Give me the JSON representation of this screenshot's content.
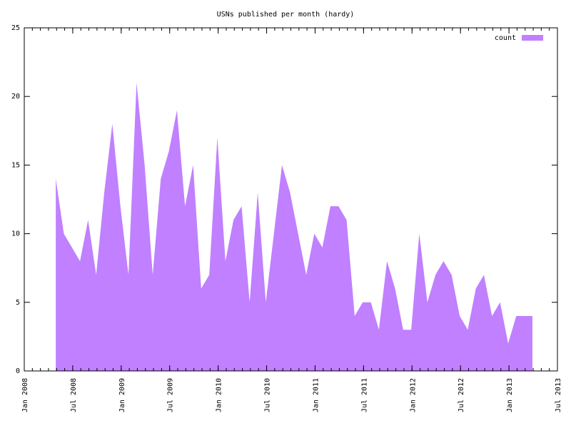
{
  "chart_data": {
    "type": "area",
    "title": "USNs published per month (hardy)",
    "x": [
      "2008-04",
      "2008-05",
      "2008-06",
      "2008-07",
      "2008-08",
      "2008-09",
      "2008-10",
      "2008-11",
      "2008-12",
      "2009-01",
      "2009-02",
      "2009-03",
      "2009-04",
      "2009-05",
      "2009-06",
      "2009-07",
      "2009-08",
      "2009-09",
      "2009-10",
      "2009-11",
      "2009-12",
      "2010-01",
      "2010-02",
      "2010-03",
      "2010-04",
      "2010-05",
      "2010-06",
      "2010-07",
      "2010-08",
      "2010-09",
      "2010-10",
      "2010-11",
      "2010-12",
      "2011-01",
      "2011-02",
      "2011-03",
      "2011-04",
      "2011-05",
      "2011-06",
      "2011-07",
      "2011-08",
      "2011-09",
      "2011-10",
      "2011-11",
      "2011-12",
      "2012-01",
      "2012-02",
      "2012-03",
      "2012-04",
      "2012-05",
      "2012-06",
      "2012-07",
      "2012-08",
      "2012-09",
      "2012-10",
      "2012-11",
      "2012-12",
      "2013-01",
      "2013-02",
      "2013-03"
    ],
    "series": [
      {
        "name": "count",
        "color": "#c080ff",
        "values": [
          14,
          10,
          9,
          8,
          11,
          7,
          13,
          18,
          12,
          7,
          21,
          15,
          7,
          14,
          16,
          19,
          12,
          15,
          6,
          7,
          17,
          8,
          11,
          12,
          5,
          13,
          5,
          10,
          15,
          13,
          10,
          7,
          10,
          9,
          12,
          12,
          11,
          4,
          5,
          5,
          3,
          8,
          6,
          3,
          3,
          10,
          5,
          7,
          8,
          7,
          4,
          3,
          6,
          7,
          4,
          5,
          2,
          4,
          4,
          4
        ]
      }
    ],
    "xlim": [
      "2008-01",
      "2013-07"
    ],
    "xticks": [
      {
        "value": "2008-01",
        "label": "Jan 2008"
      },
      {
        "value": "2008-07",
        "label": "Jul 2008"
      },
      {
        "value": "2009-01",
        "label": "Jan 2009"
      },
      {
        "value": "2009-07",
        "label": "Jul 2009"
      },
      {
        "value": "2010-01",
        "label": "Jan 2010"
      },
      {
        "value": "2010-07",
        "label": "Jul 2010"
      },
      {
        "value": "2011-01",
        "label": "Jan 2011"
      },
      {
        "value": "2011-07",
        "label": "Jul 2011"
      },
      {
        "value": "2012-01",
        "label": "Jan 2012"
      },
      {
        "value": "2012-07",
        "label": "Jul 2012"
      },
      {
        "value": "2013-01",
        "label": "Jan 2013"
      },
      {
        "value": "2013-07",
        "label": "Jul 2013"
      }
    ],
    "ylim": [
      0,
      25
    ],
    "yticks": [
      0,
      5,
      10,
      15,
      20,
      25
    ],
    "legend": "top-right"
  }
}
